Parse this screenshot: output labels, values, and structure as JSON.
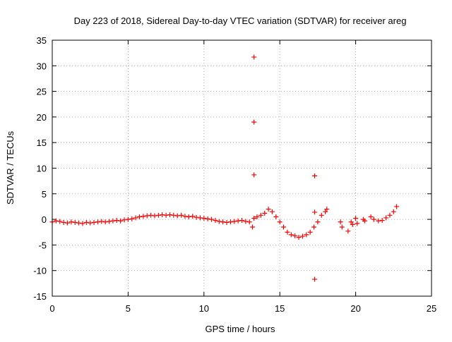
{
  "chart_data": {
    "type": "scatter",
    "title": "Day 223 of 2018, Sidereal Day-to-day VTEC variation (SDTVAR) for receiver areg",
    "xlabel": "GPS time / hours",
    "ylabel": "SDTVAR / TECUs",
    "xlim": [
      0,
      25
    ],
    "ylim": [
      -15,
      35
    ],
    "xticks": [
      0,
      5,
      10,
      15,
      20,
      25
    ],
    "yticks": [
      -15,
      -10,
      -5,
      0,
      5,
      10,
      15,
      20,
      25,
      30,
      35
    ],
    "grid": true,
    "marker": "+",
    "color": "#ff0000",
    "series": [
      {
        "name": "SDTVAR",
        "x": [
          0.0,
          0.25,
          0.5,
          0.75,
          1.0,
          1.25,
          1.5,
          1.75,
          2.0,
          2.25,
          2.5,
          2.75,
          3.0,
          3.25,
          3.5,
          3.75,
          4.0,
          4.25,
          4.5,
          4.75,
          5.0,
          5.25,
          5.5,
          5.75,
          6.0,
          6.25,
          6.5,
          6.75,
          7.0,
          7.25,
          7.5,
          7.75,
          8.0,
          8.25,
          8.5,
          8.75,
          9.0,
          9.25,
          9.5,
          9.75,
          10.0,
          10.25,
          10.5,
          10.75,
          11.0,
          11.25,
          11.5,
          11.75,
          12.0,
          12.25,
          12.5,
          12.75,
          13.0,
          13.2,
          13.3,
          13.3,
          13.3,
          13.3,
          13.5,
          13.75,
          14.0,
          14.25,
          14.5,
          14.75,
          15.0,
          15.25,
          15.5,
          15.75,
          16.0,
          16.25,
          16.5,
          16.75,
          17.0,
          17.25,
          17.3,
          17.3,
          17.3,
          17.5,
          17.75,
          18.0,
          18.1,
          19.0,
          19.1,
          19.5,
          19.7,
          19.8,
          20.0,
          20.1,
          20.5,
          20.6,
          21.0,
          21.2,
          21.5,
          21.75,
          22.0,
          22.25,
          22.5,
          22.7
        ],
        "y": [
          -0.5,
          -0.3,
          -0.4,
          -0.6,
          -0.7,
          -0.5,
          -0.6,
          -0.7,
          -0.8,
          -0.6,
          -0.7,
          -0.6,
          -0.5,
          -0.4,
          -0.5,
          -0.4,
          -0.3,
          -0.2,
          -0.3,
          -0.1,
          0.0,
          0.1,
          0.3,
          0.5,
          0.6,
          0.7,
          0.8,
          0.7,
          0.8,
          0.9,
          0.8,
          0.9,
          0.8,
          0.7,
          0.8,
          0.6,
          0.5,
          0.6,
          0.4,
          0.3,
          0.2,
          0.1,
          0.0,
          -0.2,
          -0.4,
          -0.5,
          -0.6,
          -0.5,
          -0.4,
          -0.3,
          -0.2,
          -0.4,
          -0.5,
          -1.5,
          8.7,
          19.0,
          31.7,
          0.2,
          0.5,
          0.8,
          1.2,
          2.0,
          1.5,
          0.5,
          -0.5,
          -1.5,
          -2.5,
          -3.0,
          -3.2,
          -3.5,
          -3.3,
          -3.0,
          -2.5,
          -1.5,
          8.5,
          1.4,
          -11.7,
          -0.5,
          0.8,
          1.5,
          2.0,
          -0.5,
          -1.5,
          -2.3,
          -0.5,
          -1.0,
          0.2,
          -0.8,
          0.0,
          -0.3,
          0.5,
          0.0,
          -0.3,
          -0.2,
          0.3,
          0.8,
          1.5,
          2.5
        ]
      }
    ]
  }
}
